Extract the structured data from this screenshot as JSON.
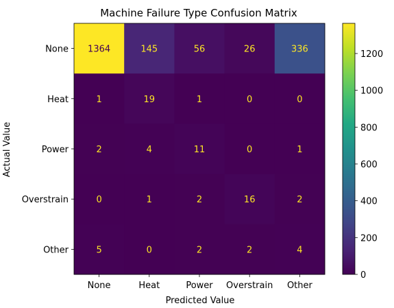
{
  "chart_data": {
    "type": "heatmap",
    "title": "Machine Failure Type Confusion Matrix",
    "xlabel": "Predicted Value",
    "ylabel": "Actual Value",
    "x_categories": [
      "None",
      "Heat",
      "Power",
      "Overstrain",
      "Other"
    ],
    "y_categories": [
      "None",
      "Heat",
      "Power",
      "Overstrain",
      "Other"
    ],
    "values": [
      [
        1364,
        145,
        56,
        26,
        336
      ],
      [
        1,
        19,
        1,
        0,
        0
      ],
      [
        2,
        4,
        11,
        0,
        1
      ],
      [
        0,
        1,
        2,
        16,
        2
      ],
      [
        5,
        0,
        2,
        2,
        4
      ]
    ],
    "colormap": "viridis",
    "color_range": [
      0,
      1364
    ],
    "colorbar_ticks": [
      0,
      200,
      400,
      600,
      800,
      1000,
      1200
    ],
    "colors": {
      "text_on_dark": "#fde725",
      "text_on_light": "#440154"
    }
  }
}
